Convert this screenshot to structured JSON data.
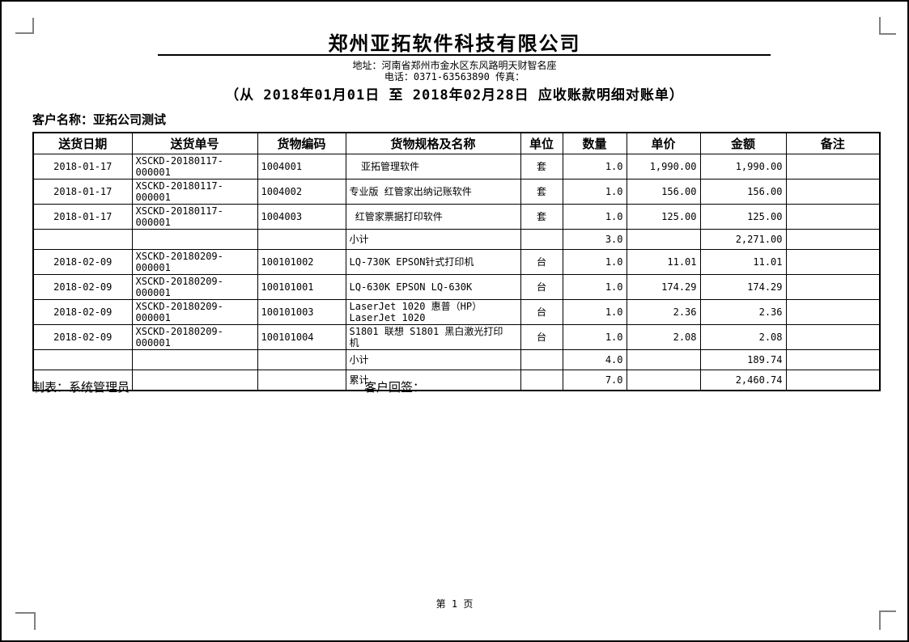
{
  "header": {
    "company_name": "郑州亚拓软件科技有限公司",
    "address_line": "地址：河南省郑州市金水区东风路明天财智名座",
    "phone_line": "电话：0371-63563890 传真：",
    "statement_title": "（从 2018年01月01日 至 2018年02月28日 应收账款明细对账单）"
  },
  "customer": {
    "label": "客户名称：亚拓公司测试"
  },
  "table": {
    "headers": [
      "送货日期",
      "送货单号",
      "货物编码",
      "货物规格及名称",
      "单位",
      "数量",
      "单价",
      "金额",
      "备注"
    ],
    "rows": [
      {
        "date": "2018-01-17",
        "order_no": "XSCKD-20180117-000001",
        "item_code": "1004001",
        "item_name": "  亚拓管理软件",
        "unit": "套",
        "qty": "1.0",
        "price": "1,990.00",
        "amount": "1,990.00",
        "remark": ""
      },
      {
        "date": "2018-01-17",
        "order_no": "XSCKD-20180117-000001",
        "item_code": "1004002",
        "item_name": "专业版 红管家出纳记账软件",
        "unit": "套",
        "qty": "1.0",
        "price": "156.00",
        "amount": "156.00",
        "remark": ""
      },
      {
        "date": "2018-01-17",
        "order_no": "XSCKD-20180117-000001",
        "item_code": "1004003",
        "item_name": " 红管家票据打印软件",
        "unit": "套",
        "qty": "1.0",
        "price": "125.00",
        "amount": "125.00",
        "remark": ""
      },
      {
        "date": "",
        "order_no": "",
        "item_code": "",
        "item_name": "小计",
        "unit": "",
        "qty": "3.0",
        "price": "",
        "amount": "2,271.00",
        "remark": ""
      },
      {
        "date": "2018-02-09",
        "order_no": "XSCKD-20180209-000001",
        "item_code": "100101002",
        "item_name": "LQ-730K EPSON针式打印机",
        "unit": "台",
        "qty": "1.0",
        "price": "11.01",
        "amount": "11.01",
        "remark": ""
      },
      {
        "date": "2018-02-09",
        "order_no": "XSCKD-20180209-000001",
        "item_code": "100101001",
        "item_name": "LQ-630K EPSON LQ-630K",
        "unit": "台",
        "qty": "1.0",
        "price": "174.29",
        "amount": "174.29",
        "remark": ""
      },
      {
        "date": "2018-02-09",
        "order_no": "XSCKD-20180209-000001",
        "item_code": "100101003",
        "item_name": "LaserJet 1020 惠普（HP）\nLaserJet 1020",
        "unit": "台",
        "qty": "1.0",
        "price": "2.36",
        "amount": "2.36",
        "remark": ""
      },
      {
        "date": "2018-02-09",
        "order_no": "XSCKD-20180209-000001",
        "item_code": "100101004",
        "item_name": "S1801 联想 S1801 黑白激光打印\n机",
        "unit": "台",
        "qty": "1.0",
        "price": "2.08",
        "amount": "2.08",
        "remark": ""
      },
      {
        "date": "",
        "order_no": "",
        "item_code": "",
        "item_name": "小计",
        "unit": "",
        "qty": "4.0",
        "price": "",
        "amount": "189.74",
        "remark": ""
      },
      {
        "date": "",
        "order_no": "",
        "item_code": "",
        "item_name": "累计",
        "unit": "",
        "qty": "7.0",
        "price": "",
        "amount": "2,460.74",
        "remark": ""
      }
    ]
  },
  "footer": {
    "preparer": "制表：系统管理员",
    "customer_sign": "客户回签：",
    "page_number": "第 1 页"
  },
  "colors": {
    "text": "#000000",
    "table_border": "#000000",
    "corner_mark": "#808080",
    "background": "#ffffff"
  }
}
